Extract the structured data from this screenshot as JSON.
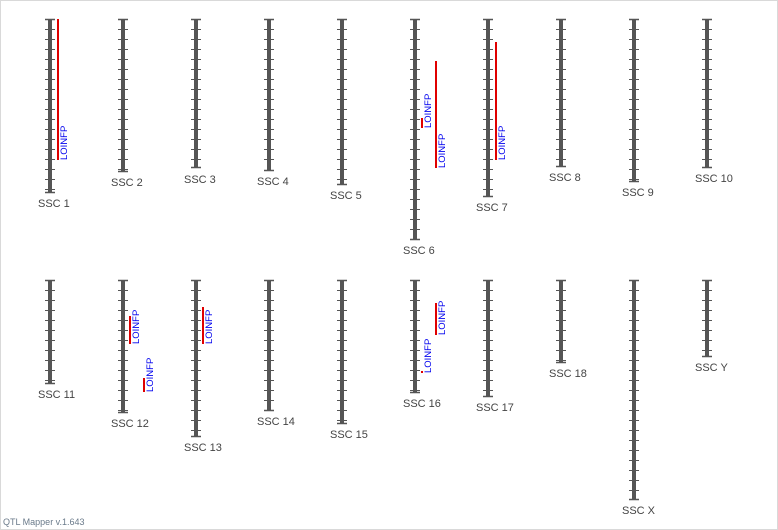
{
  "app": {
    "version_label": "QTL Mapper v.1.643"
  },
  "colors": {
    "chromosome": "#555555",
    "qtl_bar": "#e00000",
    "qtl_label": "#0000ee",
    "label": "#444444"
  },
  "chromosomes": [
    {
      "name": "SSC 1"
    },
    {
      "name": "SSC 2"
    },
    {
      "name": "SSC 3"
    },
    {
      "name": "SSC 4"
    },
    {
      "name": "SSC 5"
    },
    {
      "name": "SSC 6"
    },
    {
      "name": "SSC 7"
    },
    {
      "name": "SSC 8"
    },
    {
      "name": "SSC 9"
    },
    {
      "name": "SSC 10"
    },
    {
      "name": "SSC 11"
    },
    {
      "name": "SSC 12"
    },
    {
      "name": "SSC 13"
    },
    {
      "name": "SSC 14"
    },
    {
      "name": "SSC 15"
    },
    {
      "name": "SSC 16"
    },
    {
      "name": "SSC 17"
    },
    {
      "name": "SSC 18"
    },
    {
      "name": "SSC X"
    },
    {
      "name": "SSC Y"
    }
  ],
  "qtls": [
    {
      "chromosome": "SSC 1",
      "trait": "LOINFP"
    },
    {
      "chromosome": "SSC 6",
      "trait": "LOINFP"
    },
    {
      "chromosome": "SSC 6",
      "trait": "LOINFP"
    },
    {
      "chromosome": "SSC 7",
      "trait": "LOINFP"
    },
    {
      "chromosome": "SSC 12",
      "trait": "LOINFP"
    },
    {
      "chromosome": "SSC 12",
      "trait": "LOINFP"
    },
    {
      "chromosome": "SSC 13",
      "trait": "LOINFP"
    },
    {
      "chromosome": "SSC 16",
      "trait": "LOINFP"
    },
    {
      "chromosome": "SSC 16",
      "trait": "LOINFP"
    }
  ]
}
